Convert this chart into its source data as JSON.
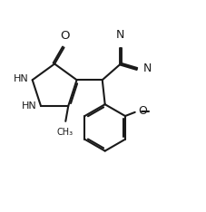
{
  "bg_color": "#ffffff",
  "line_color": "#1a1a1a",
  "lw": 1.5,
  "fs": 8.0,
  "xlim": [
    0.0,
    9.0
  ],
  "ylim": [
    1.5,
    11.0
  ]
}
